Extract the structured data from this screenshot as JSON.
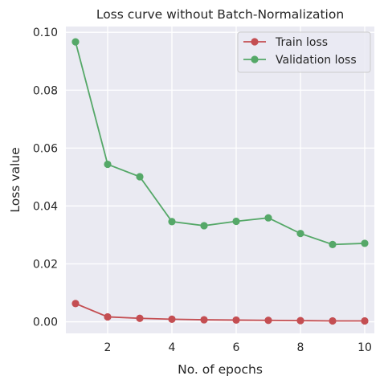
{
  "chart_data": {
    "type": "line",
    "title": "Loss curve without Batch-Normalization",
    "xlabel": "No. of epochs",
    "ylabel": "Loss value",
    "xlim": [
      0.7,
      10.3
    ],
    "ylim": [
      -0.004,
      0.102
    ],
    "xticks": [
      2,
      4,
      6,
      8,
      10
    ],
    "xtick_labels": [
      "2",
      "4",
      "6",
      "8",
      "10"
    ],
    "yticks": [
      0.0,
      0.02,
      0.04,
      0.06,
      0.08,
      0.1
    ],
    "ytick_labels": [
      "0.00",
      "0.02",
      "0.04",
      "0.06",
      "0.08",
      "0.10"
    ],
    "grid": true,
    "legend_position": "top-right",
    "x": [
      1,
      2,
      3,
      4,
      5,
      6,
      7,
      8,
      9,
      10
    ],
    "series": [
      {
        "name": "Train loss",
        "color": "#c44e52",
        "values": [
          0.0063,
          0.0017,
          0.0012,
          0.0009,
          0.0007,
          0.0006,
          0.0005,
          0.0004,
          0.0003,
          0.0003
        ]
      },
      {
        "name": "Validation loss",
        "color": "#55a868",
        "values": [
          0.0967,
          0.0544,
          0.0501,
          0.0346,
          0.0332,
          0.0347,
          0.0359,
          0.0305,
          0.0267,
          0.0271
        ]
      }
    ],
    "background_color": "#eaeaf2",
    "grid_color": "#ffffff"
  }
}
